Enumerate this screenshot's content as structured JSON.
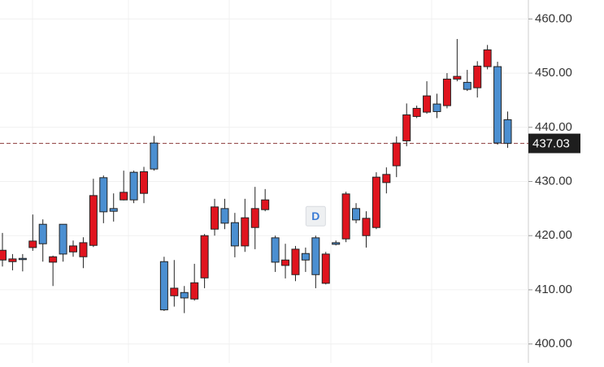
{
  "chart_data": {
    "type": "candlestick",
    "up_color": "#e0141e",
    "down_color": "#4b8fd1",
    "open": [
      415.5,
      415.2,
      415.8,
      417.8,
      422.1,
      415.1,
      422.1,
      417.0,
      416.1,
      418.2,
      430.7,
      425.0,
      426.6,
      431.7,
      427.8,
      437.1,
      415.2,
      408.9,
      409.5,
      408.3,
      412.2,
      421.2,
      425.0,
      422.4,
      418.1,
      421.5,
      424.8,
      419.6,
      414.5,
      412.8,
      416.7,
      419.6,
      411.2,
      418.7,
      419.4,
      425.0,
      420.0,
      421.5,
      429.8,
      432.9,
      437.5,
      442.0,
      442.8,
      444.3,
      444.0,
      448.9,
      448.3,
      447.3,
      451.2,
      451.2,
      441.4
    ],
    "high": [
      420.5,
      416.6,
      416.6,
      423.9,
      423.0,
      416.3,
      422.1,
      419.1,
      419.7,
      430.5,
      431.1,
      427.8,
      432.0,
      432.0,
      432.7,
      438.4,
      416.1,
      415.5,
      410.7,
      414.8,
      420.3,
      426.8,
      426.8,
      424.2,
      426.8,
      429.0,
      428.6,
      420.0,
      418.5,
      418.1,
      417.8,
      420.0,
      417.0,
      419.1,
      428.1,
      426.0,
      424.5,
      431.7,
      432.6,
      438.3,
      444.4,
      444.0,
      448.5,
      446.2,
      450.0,
      456.3,
      450.6,
      452.2,
      455.2,
      452.1,
      442.9
    ],
    "low": [
      414.3,
      413.6,
      413.4,
      417.2,
      415.2,
      410.7,
      415.2,
      416.1,
      414.0,
      417.9,
      422.3,
      422.6,
      426.5,
      426.0,
      426.0,
      432.0,
      406.1,
      406.9,
      405.7,
      408.0,
      410.3,
      420.0,
      421.2,
      416.0,
      417.0,
      417.5,
      424.5,
      413.3,
      412.1,
      411.6,
      413.3,
      410.3,
      411.0,
      418.2,
      418.8,
      422.3,
      417.8,
      421.2,
      427.8,
      430.8,
      436.5,
      441.7,
      442.5,
      441.7,
      443.5,
      448.5,
      446.7,
      445.5,
      450.7,
      436.8,
      436.2
    ],
    "close": [
      417.3,
      415.7,
      415.7,
      419.0,
      418.5,
      416.1,
      416.6,
      418.1,
      418.7,
      427.4,
      424.4,
      424.5,
      428.0,
      426.6,
      431.8,
      432.3,
      406.3,
      410.3,
      408.5,
      411.3,
      420.0,
      425.3,
      422.3,
      418.1,
      423.3,
      425.0,
      426.6,
      415.1,
      415.5,
      417.5,
      415.5,
      412.8,
      416.6,
      418.4,
      427.7,
      422.9,
      423.2,
      430.8,
      431.3,
      437.1,
      442.3,
      443.5,
      445.8,
      442.9,
      448.9,
      449.4,
      447.0,
      451.3,
      454.3,
      437.1,
      437.03
    ],
    "annotations": [
      {
        "index": 31,
        "text": "D"
      }
    ],
    "last_price": {
      "value": 437.03,
      "label": "437.03"
    },
    "ylim": [
      396.5,
      463.5
    ],
    "yticks": [
      {
        "value": 400,
        "label": "400.00"
      },
      {
        "value": 410,
        "label": "410.00"
      },
      {
        "value": 420,
        "label": "420.00"
      },
      {
        "value": 430,
        "label": "430.00"
      },
      {
        "value": 440,
        "label": "440.00"
      },
      {
        "value": 450,
        "label": "450.00"
      },
      {
        "value": 460,
        "label": "460.00"
      }
    ],
    "grid": true
  }
}
